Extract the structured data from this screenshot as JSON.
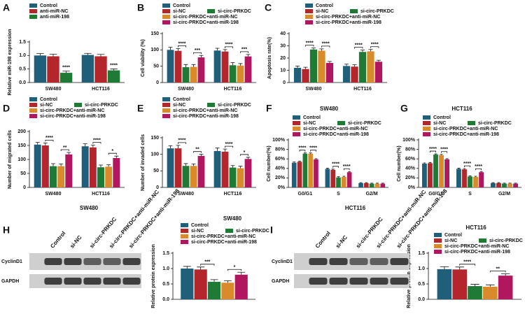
{
  "chart_data": [
    {
      "type": "bar",
      "panel": "A",
      "ylabel": "Relative miR-198 expression",
      "categories": [
        "SW480",
        "HCT116"
      ],
      "series": [
        {
          "name": "Control",
          "color": "#1f5f7a",
          "values": [
            1.0,
            1.02
          ],
          "errors": [
            0.07,
            0.06
          ]
        },
        {
          "name": "anti-miR-NC",
          "color": "#b3262b",
          "values": [
            0.97,
            0.97
          ],
          "errors": [
            0.08,
            0.07
          ]
        },
        {
          "name": "anti-miR-198",
          "color": "#1f7a36",
          "values": [
            0.36,
            0.45
          ],
          "errors": [
            0.06,
            0.05
          ]
        }
      ],
      "ylim": [
        0,
        1.5
      ],
      "yticks": [
        {
          "value": 0,
          "label": "0.0"
        },
        {
          "value": 0.5,
          "label": "0.5"
        },
        {
          "value": 1,
          "label": "1.0"
        },
        {
          "value": 1.5,
          "label": "1.5"
        }
      ],
      "comparisons": [
        {
          "label": "****",
          "category": "SW480",
          "between": [
            "Control",
            "anti-miR-198"
          ],
          "plain": true
        },
        {
          "label": "****",
          "category": "HCT116",
          "between": [
            "Control",
            "anti-miR-198"
          ],
          "plain": true
        }
      ]
    },
    {
      "type": "bar",
      "panel": "B",
      "ylabel": "Cell viability (%)",
      "categories": [
        "SW480",
        "HCT116"
      ],
      "series": [
        {
          "name": "Control",
          "color": "#1f5f7a",
          "values": [
            100,
            98
          ],
          "errors": [
            8,
            7
          ]
        },
        {
          "name": "si-NC",
          "color": "#b3262b",
          "values": [
            97,
            95
          ],
          "errors": [
            7,
            6
          ]
        },
        {
          "name": "si-circ-PRKDC",
          "color": "#1f7a36",
          "values": [
            47,
            53
          ],
          "errors": [
            8,
            8
          ]
        },
        {
          "name": "si-circ-PRKDC+anti-miR-NC",
          "color": "#d98b2b",
          "values": [
            48,
            52
          ],
          "errors": [
            7,
            6
          ]
        },
        {
          "name": "si-circ-PRKDC+anti-miR-198",
          "color": "#b0175f",
          "values": [
            77,
            80
          ],
          "errors": [
            6,
            6
          ]
        }
      ],
      "ylim": [
        0,
        150
      ],
      "yticks": [
        0,
        50,
        100,
        150
      ],
      "comparisons": [
        {
          "label": "****",
          "category": "SW480",
          "between": [
            "si-NC",
            "si-circ-PRKDC"
          ]
        },
        {
          "label": "***",
          "category": "SW480",
          "between": [
            "si-circ-PRKDC+anti-miR-NC",
            "si-circ-PRKDC+anti-miR-198"
          ]
        },
        {
          "label": "****",
          "category": "HCT116",
          "between": [
            "si-NC",
            "si-circ-PRKDC"
          ]
        },
        {
          "label": "***",
          "category": "HCT116",
          "between": [
            "si-circ-PRKDC+anti-miR-NC",
            "si-circ-PRKDC+anti-miR-198"
          ]
        }
      ]
    },
    {
      "type": "bar",
      "panel": "C",
      "ylabel": "Apoptosis rate(%)",
      "categories": [
        "SW480",
        "HCT116"
      ],
      "series": [
        {
          "name": "Control",
          "color": "#1f5f7a",
          "values": [
            12,
            13.5
          ],
          "errors": [
            1.5,
            1.5
          ]
        },
        {
          "name": "si-NC",
          "color": "#b3262b",
          "values": [
            11,
            13
          ],
          "errors": [
            1.5,
            1.5
          ]
        },
        {
          "name": "si-circ-PRKDC",
          "color": "#1f7a36",
          "values": [
            27,
            25
          ],
          "errors": [
            1.2,
            1.5
          ]
        },
        {
          "name": "si-circ-PRKDC+anti-miR-NC",
          "color": "#d98b2b",
          "values": [
            26,
            25.5
          ],
          "errors": [
            1.5,
            1.5
          ]
        },
        {
          "name": "si-circ-PRKDC+anti-miR-198",
          "color": "#b0175f",
          "values": [
            16,
            17
          ],
          "errors": [
            1.2,
            1.2
          ]
        }
      ],
      "ylim": [
        0,
        40
      ],
      "yticks": [
        0,
        10,
        20,
        30,
        40
      ],
      "comparisons": [
        {
          "label": "****",
          "category": "SW480",
          "between": [
            "si-NC",
            "si-circ-PRKDC"
          ]
        },
        {
          "label": "****",
          "category": "SW480",
          "between": [
            "si-circ-PRKDC+anti-miR-NC",
            "si-circ-PRKDC+anti-miR-198"
          ]
        },
        {
          "label": "****",
          "category": "HCT116",
          "between": [
            "si-NC",
            "si-circ-PRKDC"
          ]
        },
        {
          "label": "****",
          "category": "HCT116",
          "between": [
            "si-circ-PRKDC+anti-miR-NC",
            "si-circ-PRKDC+anti-miR-198"
          ]
        }
      ]
    },
    {
      "type": "bar",
      "panel": "D",
      "ylabel": "Number of migrated cells",
      "categories": [
        "SW480",
        "HCT116"
      ],
      "series": [
        {
          "name": "Control",
          "color": "#1f5f7a",
          "values": [
            153,
            147
          ],
          "errors": [
            8,
            9
          ]
        },
        {
          "name": "si-NC",
          "color": "#b3262b",
          "values": [
            150,
            143
          ],
          "errors": [
            9,
            8
          ]
        },
        {
          "name": "si-circ-PRKDC",
          "color": "#1f7a36",
          "values": [
            76,
            72
          ],
          "errors": [
            9,
            8
          ]
        },
        {
          "name": "si-circ-PRKDC+anti-miR-NC",
          "color": "#d98b2b",
          "values": [
            76,
            74
          ],
          "errors": [
            8,
            7
          ]
        },
        {
          "name": "si-circ-PRKDC+anti-miR-198",
          "color": "#b0175f",
          "values": [
            118,
            105
          ],
          "errors": [
            7,
            7
          ]
        }
      ],
      "ylim": [
        0,
        200
      ],
      "yticks": [
        0,
        50,
        100,
        150,
        200
      ],
      "comparisons": [
        {
          "label": "****",
          "category": "SW480",
          "between": [
            "si-NC",
            "si-circ-PRKDC"
          ]
        },
        {
          "label": "**",
          "category": "SW480",
          "between": [
            "si-circ-PRKDC+anti-miR-NC",
            "si-circ-PRKDC+anti-miR-198"
          ]
        },
        {
          "label": "****",
          "category": "HCT116",
          "between": [
            "si-NC",
            "si-circ-PRKDC"
          ]
        },
        {
          "label": "*",
          "category": "HCT116",
          "between": [
            "si-circ-PRKDC+anti-miR-NC",
            "si-circ-PRKDC+anti-miR-198"
          ]
        }
      ]
    },
    {
      "type": "bar",
      "panel": "E",
      "ylabel": "Number of invaded cells",
      "categories": [
        "SW480",
        "HCT116"
      ],
      "series": [
        {
          "name": "Control",
          "color": "#1f5f7a",
          "values": [
            118,
            110
          ],
          "errors": [
            8,
            9
          ]
        },
        {
          "name": "si-NC",
          "color": "#b3262b",
          "values": [
            118,
            108
          ],
          "errors": [
            9,
            8
          ]
        },
        {
          "name": "si-circ-PRKDC",
          "color": "#1f7a36",
          "values": [
            65,
            60
          ],
          "errors": [
            7,
            6
          ]
        },
        {
          "name": "si-circ-PRKDC+anti-miR-NC",
          "color": "#d98b2b",
          "values": [
            65,
            58
          ],
          "errors": [
            6,
            6
          ]
        },
        {
          "name": "si-circ-PRKDC+anti-miR-198",
          "color": "#b0175f",
          "values": [
            95,
            86
          ],
          "errors": [
            5,
            5
          ]
        }
      ],
      "ylim": [
        0,
        150
      ],
      "yticks": [
        0,
        50,
        100,
        150
      ],
      "comparisons": [
        {
          "label": "****",
          "category": "SW480",
          "between": [
            "si-NC",
            "si-circ-PRKDC"
          ]
        },
        {
          "label": "**",
          "category": "SW480",
          "between": [
            "si-circ-PRKDC+anti-miR-NC",
            "si-circ-PRKDC+anti-miR-198"
          ]
        },
        {
          "label": "****",
          "category": "HCT116",
          "between": [
            "si-NC",
            "si-circ-PRKDC"
          ]
        },
        {
          "label": "*",
          "category": "HCT116",
          "between": [
            "si-circ-PRKDC+anti-miR-NC",
            "si-circ-PRKDC+anti-miR-198"
          ]
        }
      ]
    },
    {
      "type": "bar",
      "panel": "F",
      "title": "SW480",
      "ylabel": "Cell number(%)",
      "categories": [
        "G0/G1",
        "S",
        "G2/M"
      ],
      "series": [
        {
          "name": "Control",
          "color": "#1f5f7a",
          "values": [
            52,
            39,
            9
          ],
          "errors": [
            1.5,
            1.5,
            1
          ]
        },
        {
          "name": "si-NC",
          "color": "#b3262b",
          "values": [
            54,
            37,
            9
          ],
          "errors": [
            1.5,
            1.5,
            1
          ]
        },
        {
          "name": "si-circ-PRKDC",
          "color": "#1f7a36",
          "values": [
            71,
            21,
            8
          ],
          "errors": [
            1.5,
            1.5,
            1
          ]
        },
        {
          "name": "si-circ-PRKDC+anti-miR-NC",
          "color": "#d98b2b",
          "values": [
            71,
            22,
            8
          ],
          "errors": [
            1.5,
            1.5,
            1
          ]
        },
        {
          "name": "si-circ-PRKDC+anti-miR-198",
          "color": "#b0175f",
          "values": [
            59,
            32,
            8
          ],
          "errors": [
            1.5,
            1.5,
            1
          ]
        }
      ],
      "ylim": [
        0,
        100
      ],
      "yticks": [
        {
          "value": 0,
          "label": "0%"
        },
        {
          "value": 20,
          "label": "20%"
        },
        {
          "value": 40,
          "label": "40%"
        },
        {
          "value": 60,
          "label": "60%"
        },
        {
          "value": 80,
          "label": "80%"
        },
        {
          "value": 100,
          "label": "100%"
        }
      ],
      "comparisons": [
        {
          "label": "****",
          "category": "G0/G1",
          "between": [
            "si-NC",
            "si-circ-PRKDC"
          ]
        },
        {
          "label": "****",
          "category": "G0/G1",
          "between": [
            "si-circ-PRKDC+anti-miR-NC",
            "si-circ-PRKDC+anti-miR-198"
          ]
        },
        {
          "label": "****",
          "category": "S",
          "between": [
            "si-NC",
            "si-circ-PRKDC"
          ]
        },
        {
          "label": "****",
          "category": "S",
          "between": [
            "si-circ-PRKDC+anti-miR-NC",
            "si-circ-PRKDC+anti-miR-198"
          ]
        }
      ]
    },
    {
      "type": "bar",
      "panel": "G",
      "title": "HCT116",
      "ylabel": "Cell number(%)",
      "categories": [
        "G0/G1",
        "S",
        "G2/M"
      ],
      "series": [
        {
          "name": "Control",
          "color": "#1f5f7a",
          "values": [
            50,
            39,
            9
          ],
          "errors": [
            1.5,
            1.5,
            1
          ]
        },
        {
          "name": "si-NC",
          "color": "#b3262b",
          "values": [
            51,
            38,
            9
          ],
          "errors": [
            1.5,
            1.5,
            1
          ]
        },
        {
          "name": "si-circ-PRKDC",
          "color": "#1f7a36",
          "values": [
            69,
            23,
            8
          ],
          "errors": [
            1.5,
            1.5,
            1
          ]
        },
        {
          "name": "si-circ-PRKDC+anti-miR-NC",
          "color": "#d98b2b",
          "values": [
            68,
            22,
            8
          ],
          "errors": [
            1.5,
            1.5,
            1
          ]
        },
        {
          "name": "si-circ-PRKDC+anti-miR-198",
          "color": "#b0175f",
          "values": [
            59,
            32,
            8
          ],
          "errors": [
            1.5,
            1.5,
            1
          ]
        }
      ],
      "ylim": [
        0,
        100
      ],
      "yticks": [
        {
          "value": 0,
          "label": "0%"
        },
        {
          "value": 20,
          "label": "20%"
        },
        {
          "value": 40,
          "label": "40%"
        },
        {
          "value": 60,
          "label": "60%"
        },
        {
          "value": 80,
          "label": "80%"
        },
        {
          "value": 100,
          "label": "100%"
        }
      ],
      "comparisons": [
        {
          "label": "****",
          "category": "G0/G1",
          "between": [
            "si-NC",
            "si-circ-PRKDC"
          ]
        },
        {
          "label": "****",
          "category": "G0/G1",
          "between": [
            "si-circ-PRKDC+anti-miR-NC",
            "si-circ-PRKDC+anti-miR-198"
          ]
        },
        {
          "label": "****",
          "category": "S",
          "between": [
            "si-NC",
            "si-circ-PRKDC"
          ]
        },
        {
          "label": "****",
          "category": "S",
          "between": [
            "si-circ-PRKDC+anti-miR-NC",
            "si-circ-PRKDC+anti-miR-198"
          ]
        }
      ]
    },
    {
      "type": "bar",
      "title": "SW480",
      "ylabel": "Relative protein expression",
      "categories": [
        null
      ],
      "series": [
        {
          "name": "Control",
          "color": "#1f5f7a",
          "values": [
            1.0
          ],
          "errors": [
            0.07
          ]
        },
        {
          "name": "si-NC",
          "color": "#b3262b",
          "values": [
            0.97
          ],
          "errors": [
            0.08
          ]
        },
        {
          "name": "si-circ-PRKDC",
          "color": "#1f7a36",
          "values": [
            0.57
          ],
          "errors": [
            0.07
          ]
        },
        {
          "name": "si-circ-PRKDC+anti-miR-NC",
          "color": "#d98b2b",
          "values": [
            0.54
          ],
          "errors": [
            0.06
          ]
        },
        {
          "name": "si-circ-PRKDC+anti-miR-198",
          "color": "#b0175f",
          "values": [
            0.8
          ],
          "errors": [
            0.08
          ]
        }
      ],
      "ylim": [
        0,
        1.5
      ],
      "yticks": [
        {
          "value": 0,
          "label": "0.0"
        },
        {
          "value": 0.5,
          "label": "0.5"
        },
        {
          "value": 1,
          "label": "1.0"
        },
        {
          "value": 1.5,
          "label": "1.5"
        }
      ],
      "comparisons": [
        {
          "label": "***",
          "between": [
            "si-NC",
            "si-circ-PRKDC"
          ]
        },
        {
          "label": "*",
          "between": [
            "si-circ-PRKDC+anti-miR-NC",
            "si-circ-PRKDC+anti-miR-198"
          ]
        }
      ]
    },
    {
      "type": "bar",
      "title": "HCT116",
      "ylabel": "Relative protein expression",
      "categories": [
        null
      ],
      "series": [
        {
          "name": "Control",
          "color": "#1f5f7a",
          "values": [
            0.98
          ],
          "errors": [
            0.08
          ]
        },
        {
          "name": "si-NC",
          "color": "#b3262b",
          "values": [
            0.97
          ],
          "errors": [
            0.08
          ]
        },
        {
          "name": "si-circ-PRKDC",
          "color": "#1f7a36",
          "values": [
            0.43
          ],
          "errors": [
            0.06
          ]
        },
        {
          "name": "si-circ-PRKDC+anti-miR-NC",
          "color": "#d98b2b",
          "values": [
            0.41
          ],
          "errors": [
            0.06
          ]
        },
        {
          "name": "si-circ-PRKDC+anti-miR-198",
          "color": "#b0175f",
          "values": [
            0.77
          ],
          "errors": [
            0.06
          ]
        }
      ],
      "ylim": [
        0,
        1.5
      ],
      "yticks": [
        {
          "value": 0,
          "label": "0.0"
        },
        {
          "value": 0.5,
          "label": "0.5"
        },
        {
          "value": 1,
          "label": "1.0"
        },
        {
          "value": 1.5,
          "label": "1.5"
        }
      ],
      "comparisons": [
        {
          "label": "****",
          "between": [
            "si-NC",
            "si-circ-PRKDC"
          ]
        },
        {
          "label": "**",
          "between": [
            "si-circ-PRKDC+anti-miR-NC",
            "si-circ-PRKDC+anti-miR-198"
          ]
        }
      ]
    }
  ],
  "blots": [
    {
      "panel": "H",
      "title": "SW480",
      "lanes": [
        "Control",
        "si-NC",
        "si-circ-PRKDC",
        "si-circ-PRKDC+anti-miR-NC",
        "si-circ-PRKDC+anti-miR-198"
      ],
      "rows": [
        "CyclinD1",
        "GAPDH"
      ]
    },
    {
      "panel": "I",
      "title": "HCT116",
      "lanes": [
        "Control",
        "si-NC",
        "si-circ-PRKDC",
        "si-circ-PRKDC+anti-miR-NC",
        "si-circ-PRKDC+anti-miR-198"
      ],
      "rows": [
        "CyclinD1",
        "GAPDH"
      ]
    }
  ]
}
